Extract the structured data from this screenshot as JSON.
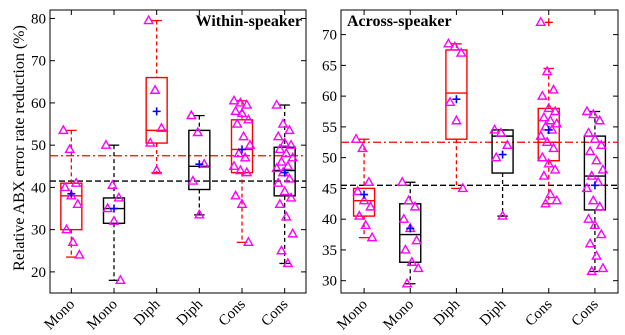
{
  "chart_data": [
    {
      "type": "box",
      "title": "Within-speaker",
      "ylabel": "Relative ABX error rate reduction (%)",
      "xlabel": "",
      "ylim": [
        15,
        82
      ],
      "yticks": [
        20,
        30,
        40,
        50,
        60,
        70,
        80
      ],
      "categories": [
        "Mono",
        "Mono",
        "Diph",
        "Diph",
        "Cons",
        "Cons"
      ],
      "box_colors": [
        "#ff0000",
        "#000000",
        "#ff0000",
        "#000000",
        "#ff0000",
        "#000000"
      ],
      "reference_lines": [
        {
          "style": "red-dashdot",
          "value": 47.5
        },
        {
          "style": "black-dashed",
          "value": 41.5
        }
      ],
      "boxes": [
        {
          "q1": 30,
          "median": 38,
          "q3": 41,
          "whisker_low": 23.5,
          "whisker_high": 53.5,
          "mean": 38.5,
          "outliers": []
        },
        {
          "q1": 31.5,
          "median": 35,
          "q3": 37.5,
          "whisker_low": 18,
          "whisker_high": 50,
          "mean": 35,
          "outliers": []
        },
        {
          "q1": 50.5,
          "median": 53.5,
          "q3": 66,
          "whisker_low": 43.5,
          "whisker_high": 79.5,
          "mean": 58,
          "outliers": []
        },
        {
          "q1": 39.5,
          "median": 45,
          "q3": 53.5,
          "whisker_low": 33.5,
          "whisker_high": 57,
          "mean": 45.5,
          "outliers": []
        },
        {
          "q1": 43.5,
          "median": 49,
          "q3": 56,
          "whisker_low": 27,
          "whisker_high": 60.5,
          "mean": 49,
          "outliers": []
        },
        {
          "q1": 38,
          "median": 44,
          "q3": 49.5,
          "whisker_low": 22,
          "whisker_high": 59.5,
          "mean": 43.5,
          "outliers": []
        }
      ],
      "points": [
        [
          53.5,
          49,
          41,
          40,
          38,
          36,
          30,
          27,
          24
        ],
        [
          50,
          40.5,
          37.5,
          35,
          32,
          18
        ],
        [
          79.5,
          63,
          54,
          50.5,
          44
        ],
        [
          57,
          53,
          45.5,
          41.5,
          33.5
        ],
        [
          60.5,
          60,
          59.5,
          58,
          57.5,
          56,
          55,
          52,
          50,
          48,
          47,
          45,
          44,
          43.5,
          38,
          36,
          27
        ],
        [
          59.5,
          55,
          53.5,
          52,
          50.5,
          50,
          49,
          48,
          47,
          46,
          45,
          44.5,
          43.5,
          42,
          41,
          39,
          37.5,
          36,
          33,
          29,
          25,
          22
        ]
      ]
    },
    {
      "type": "box",
      "title": "Across-speaker",
      "ylabel": "",
      "xlabel": "",
      "ylim": [
        28,
        74
      ],
      "yticks": [
        30,
        35,
        40,
        45,
        50,
        55,
        60,
        65,
        70
      ],
      "categories": [
        "Mono",
        "Mono",
        "Diph",
        "Diph",
        "Cons",
        "Cons"
      ],
      "box_colors": [
        "#ff0000",
        "#000000",
        "#ff0000",
        "#000000",
        "#ff0000",
        "#000000"
      ],
      "reference_lines": [
        {
          "style": "red-dashdot",
          "value": 52.5
        },
        {
          "style": "black-dashed",
          "value": 45.5
        }
      ],
      "boxes": [
        {
          "q1": 40.5,
          "median": 43,
          "q3": 45,
          "whisker_low": 37,
          "whisker_high": 53,
          "mean": 44,
          "outliers": []
        },
        {
          "q1": 33,
          "median": 37.5,
          "q3": 42.5,
          "whisker_low": 29.5,
          "whisker_high": 46,
          "mean": 38.5,
          "outliers": []
        },
        {
          "q1": 53,
          "median": 60.5,
          "q3": 67.5,
          "whisker_low": 45,
          "whisker_high": 68.5,
          "mean": 59.5,
          "outliers": []
        },
        {
          "q1": 47.5,
          "median": 53.5,
          "q3": 54.5,
          "whisker_low": 40.5,
          "whisker_high": 54.5,
          "mean": 50.5,
          "outliers": []
        },
        {
          "q1": 49.5,
          "median": 52.5,
          "q3": 58,
          "whisker_low": 42.5,
          "whisker_high": 64.5,
          "mean": 54.5,
          "outliers": [
            72
          ]
        },
        {
          "q1": 41.5,
          "median": 47,
          "q3": 53.5,
          "whisker_low": 31.5,
          "whisker_high": 57.5,
          "mean": 45.5,
          "outliers": []
        }
      ],
      "points": [
        [
          53,
          51.5,
          46,
          44.5,
          43,
          42,
          40.5,
          39,
          37
        ],
        [
          46,
          43,
          42,
          40,
          38.5,
          36.5,
          35,
          33,
          32,
          29.5
        ],
        [
          68.5,
          68,
          67,
          59,
          56,
          45
        ],
        [
          54.5,
          54,
          52,
          50,
          40.5
        ],
        [
          72,
          64,
          61,
          60,
          58,
          57.5,
          56.5,
          56,
          55.5,
          55,
          54.5,
          53.5,
          52.5,
          51.5,
          50,
          49,
          48,
          47,
          44,
          43,
          42.5
        ],
        [
          57.5,
          57,
          56,
          54,
          53,
          52,
          51,
          49.5,
          48,
          47,
          46,
          45,
          43,
          42,
          40,
          39,
          37.5,
          36,
          34,
          32,
          31.5
        ]
      ]
    }
  ]
}
